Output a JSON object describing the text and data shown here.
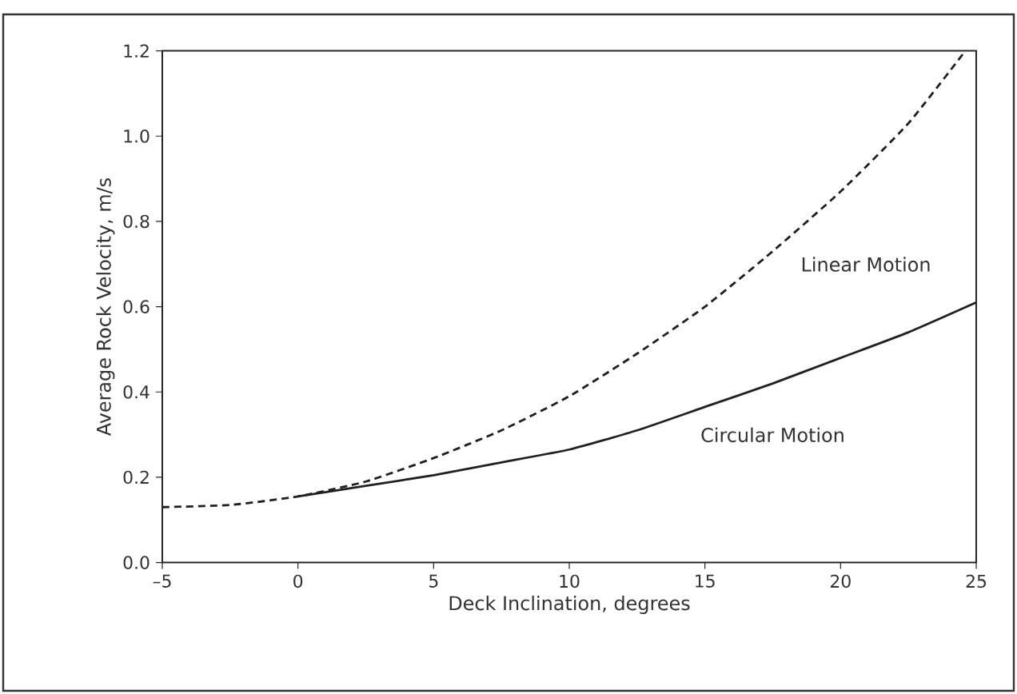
{
  "chart_data": {
    "type": "line",
    "xlabel": "Deck Inclination, degrees",
    "ylabel": "Average Rock Velocity, m/s",
    "xlim": [
      -5,
      25
    ],
    "ylim": [
      0,
      1.2
    ],
    "xticks": [
      {
        "value": -5,
        "label": "–5"
      },
      0,
      5,
      10,
      15,
      20,
      25
    ],
    "yticks": [
      {
        "value": 0,
        "label": "0.0"
      },
      0.2,
      0.4,
      0.6,
      0.8,
      {
        "value": 1,
        "label": "1.0"
      },
      1.2
    ],
    "grid": false,
    "legend": false,
    "marker": "none",
    "series": [
      {
        "name": "Linear Motion",
        "color": "#231f20",
        "line_style": "dashed",
        "x": [
          -5,
          -2.5,
          0,
          2.5,
          5,
          7.5,
          10,
          12.5,
          15,
          17.5,
          20,
          22.5,
          24.6
        ],
        "values": [
          0.13,
          0.135,
          0.155,
          0.19,
          0.245,
          0.31,
          0.39,
          0.49,
          0.6,
          0.73,
          0.87,
          1.03,
          1.2
        ]
      },
      {
        "name": "Circular Motion",
        "color": "#231f20",
        "line_style": "solid",
        "x": [
          0,
          2.5,
          5,
          7.5,
          10,
          12.5,
          15,
          17.5,
          20,
          22.5,
          25
        ],
        "values": [
          0.155,
          0.18,
          0.205,
          0.235,
          0.265,
          0.31,
          0.365,
          0.42,
          0.48,
          0.54,
          0.61
        ]
      }
    ]
  }
}
